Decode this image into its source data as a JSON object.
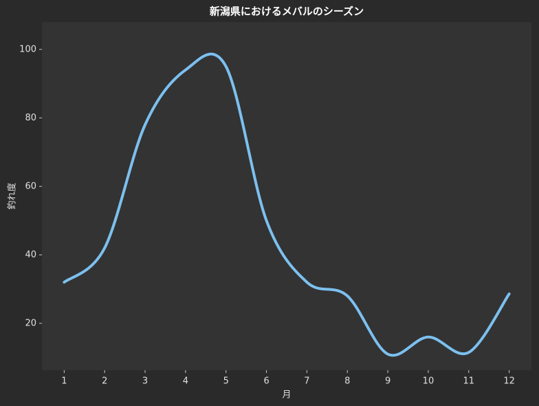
{
  "chart_data": {
    "type": "line",
    "title": "新潟県におけるメバルのシーズン",
    "x_label": "月",
    "y_label": "釣れ度",
    "x": [
      1,
      2,
      3,
      4,
      5,
      6,
      7,
      8,
      9,
      10,
      11,
      12
    ],
    "series": [
      {
        "color": "#7cc0ef",
        "values": [
          32,
          42,
          78,
          94,
          95,
          50,
          32,
          28,
          11,
          16,
          11.5,
          28.6
        ]
      }
    ],
    "xlim": [
      0.45,
      12.55
    ],
    "xticks": [
      1,
      2,
      3,
      4,
      5,
      6,
      7,
      8,
      9,
      10,
      11,
      12
    ],
    "ylim": [
      6.3,
      108
    ],
    "yticks": [
      20,
      40,
      60,
      80,
      100
    ]
  }
}
